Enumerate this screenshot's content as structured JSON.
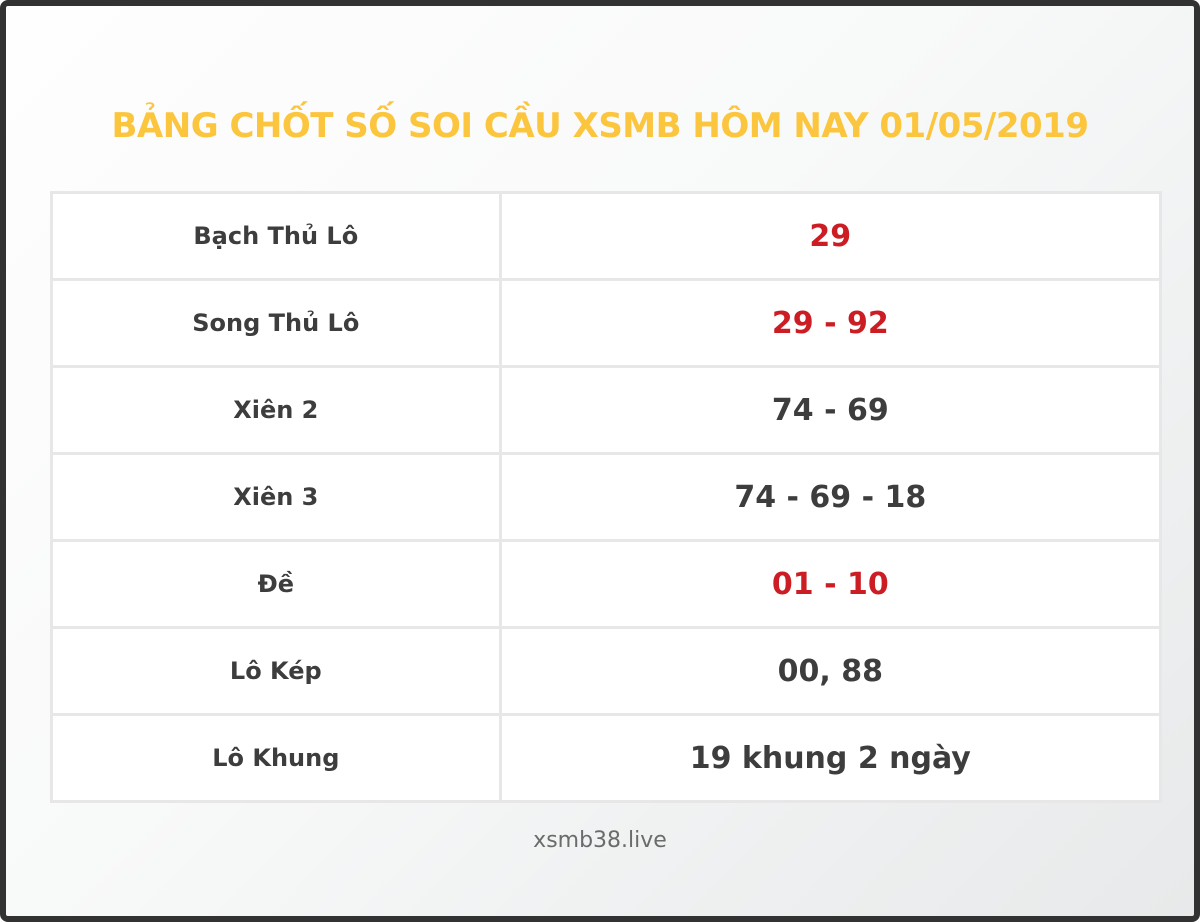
{
  "title": "BẢNG CHỐT SỐ SOI CẦU XSMB HÔM NAY 01/05/2019",
  "colors": {
    "title_yellow": "#fcc53e",
    "highlight_red": "#cb1d23",
    "text_dark": "#3d3d3d",
    "footer_gray": "#6b6b6b",
    "cell_border": "#e7e7e7",
    "frame_dark": "#323232"
  },
  "table": {
    "rows": [
      {
        "label": "Bạch Thủ Lô",
        "value": "29",
        "value_color": "red"
      },
      {
        "label": "Song Thủ Lô",
        "value": "29 - 92",
        "value_color": "red"
      },
      {
        "label": "Xiên 2",
        "value": "74 - 69",
        "value_color": "dark"
      },
      {
        "label": "Xiên 3",
        "value": "74 - 69 - 18",
        "value_color": "dark"
      },
      {
        "label": "Đề",
        "value": "01 - 10",
        "value_color": "red"
      },
      {
        "label": "Lô Kép",
        "value": "00, 88",
        "value_color": "dark"
      },
      {
        "label": "Lô Khung",
        "value": "19 khung 2 ngày",
        "value_color": "dark"
      }
    ]
  },
  "footer": {
    "site": "xsmb38.live"
  }
}
